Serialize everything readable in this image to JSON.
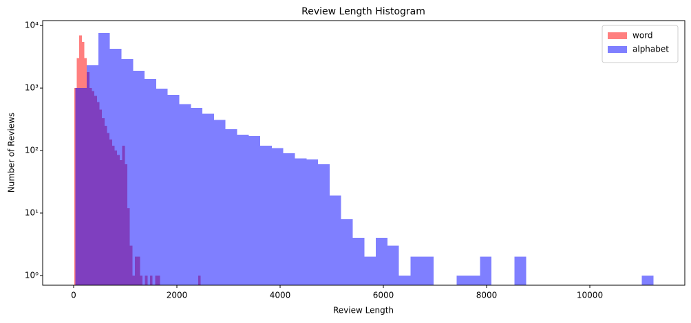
{
  "chart_data": {
    "type": "histogram",
    "title": "Review Length Histogram",
    "x_label": "Review Length",
    "y_label": "Number of Reviews",
    "log_y": true,
    "legend": "upper right",
    "alpha": 0.5,
    "xlim": [
      -600,
      11840
    ],
    "ylim": [
      0.7,
      12000
    ],
    "xticks": [
      0,
      2000,
      4000,
      6000,
      8000,
      10000
    ],
    "yticks": [
      {
        "value": 1,
        "label": "10⁰"
      },
      {
        "value": 10,
        "label": "10¹"
      },
      {
        "value": 100,
        "label": "10²"
      },
      {
        "value": 1000,
        "label": "10³"
      },
      {
        "value": 10000,
        "label": "10⁴"
      }
    ],
    "series": [
      {
        "name": "word",
        "color": "#ff0000",
        "bins": [
          10,
          59,
          108,
          157,
          206,
          255,
          304,
          353,
          402,
          451,
          500,
          549,
          598,
          647,
          696,
          745,
          794,
          843,
          892,
          941,
          990,
          1039,
          1088,
          1137,
          1186,
          1235,
          1284,
          1333,
          1382,
          1431,
          1480,
          1529,
          1578,
          1627,
          1676,
          1725,
          1774,
          1823,
          1872,
          1921,
          1970,
          2019,
          2068,
          2117,
          2166,
          2215,
          2264,
          2313,
          2362,
          2411,
          2460
        ],
        "values": [
          1000,
          3000,
          7000,
          5500,
          3000,
          1800,
          1000,
          900,
          750,
          600,
          450,
          330,
          250,
          190,
          150,
          120,
          100,
          85,
          70,
          120,
          60,
          12,
          3,
          1,
          2,
          2,
          1,
          0,
          1,
          0,
          1,
          0,
          1,
          1,
          0,
          0,
          0,
          0,
          0,
          0,
          0,
          0,
          0,
          0,
          0,
          0,
          0,
          0,
          0,
          1
        ]
      },
      {
        "name": "alphabet",
        "color": "#0000ff",
        "bins": [
          30,
          254,
          478,
          702,
          926,
          1150,
          1374,
          1598,
          1822,
          2046,
          2270,
          2494,
          2718,
          2942,
          3166,
          3390,
          3614,
          3838,
          4062,
          4286,
          4510,
          4734,
          4958,
          5182,
          5406,
          5630,
          5854,
          6078,
          6302,
          6526,
          6750,
          6974,
          7198,
          7422,
          7646,
          7870,
          8094,
          8318,
          8542,
          8766,
          8990,
          9214,
          9438,
          9662,
          9886,
          10110,
          10334,
          10558,
          10782,
          11006,
          11230
        ],
        "values": [
          1000,
          2300,
          7600,
          4260,
          2900,
          1900,
          1400,
          980,
          780,
          550,
          480,
          390,
          310,
          220,
          180,
          170,
          120,
          110,
          90,
          75,
          72,
          60,
          19,
          8,
          4,
          2,
          4,
          3,
          1,
          2,
          2,
          0,
          0,
          1,
          1,
          2,
          0,
          0,
          2,
          0,
          0,
          0,
          0,
          0,
          0,
          0,
          0,
          0,
          0,
          1
        ]
      }
    ]
  }
}
